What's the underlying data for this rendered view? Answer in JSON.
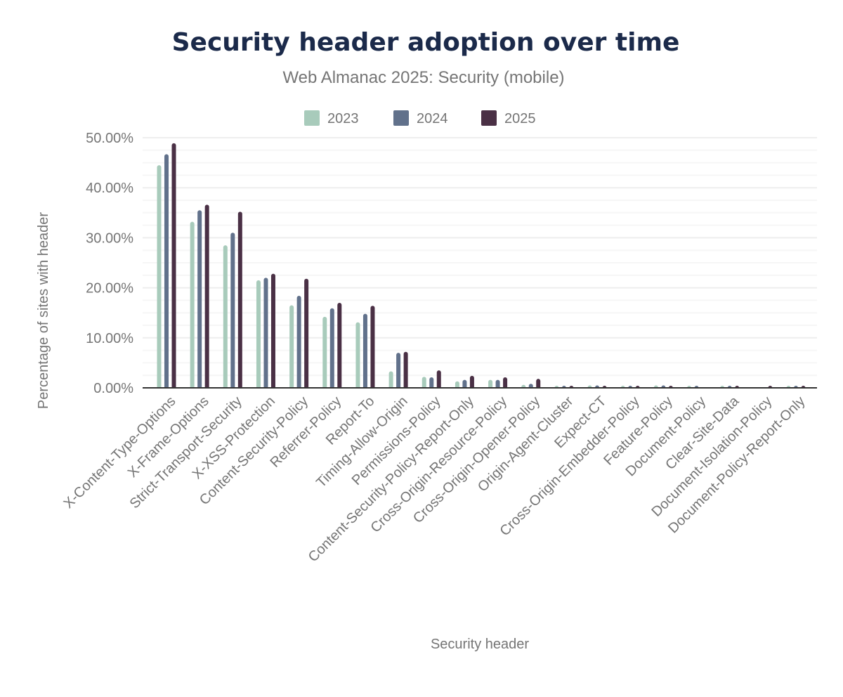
{
  "chart_data": {
    "type": "bar",
    "title": "Security header adoption over time",
    "subtitle": "Web Almanac 2025: Security (mobile)",
    "xlabel": "Security header",
    "ylabel": "Percentage of sites with header",
    "ylim": [
      0,
      50
    ],
    "yticks": [
      "0.00%",
      "10.00%",
      "20.00%",
      "30.00%",
      "40.00%",
      "50.00%"
    ],
    "grid": true,
    "legend_position": "top",
    "categories": [
      "X-Content-Type-Options",
      "X-Frame-Options",
      "Strict-Transport-Security",
      "X-XSS-Protection",
      "Content-Security-Policy",
      "Referrer-Policy",
      "Report-To",
      "Timing-Allow-Origin",
      "Permissions-Policy",
      "Content-Security-Policy-Report-Only",
      "Cross-Origin-Resource-Policy",
      "Cross-Origin-Opener-Policy",
      "Origin-Agent-Cluster",
      "Expect-CT",
      "Cross-Origin-Embedder-Policy",
      "Feature-Policy",
      "Document-Policy",
      "Clear-Site-Data",
      "Document-Isolation-Policy",
      "Document-Policy-Report-Only"
    ],
    "series": [
      {
        "name": "2023",
        "color": "#a8cbbb",
        "values": [
          44.5,
          33.2,
          28.5,
          21.5,
          16.5,
          14.2,
          13.1,
          3.3,
          2.2,
          1.3,
          1.6,
          0.6,
          0.1,
          0.5,
          0.1,
          0.5,
          0.05,
          0.1,
          0,
          0.1
        ]
      },
      {
        "name": "2024",
        "color": "#61718b",
        "values": [
          46.7,
          35.5,
          31.0,
          22.0,
          18.4,
          15.9,
          14.8,
          7.0,
          2.1,
          1.6,
          1.6,
          0.8,
          0.1,
          0.5,
          0.2,
          0.5,
          0.05,
          0.1,
          0,
          0.1
        ]
      },
      {
        "name": "2025",
        "color": "#4a3045",
        "values": [
          48.9,
          36.6,
          35.2,
          22.8,
          21.8,
          17.0,
          16.4,
          7.2,
          3.5,
          2.4,
          2.1,
          1.8,
          0.4,
          0.4,
          0.4,
          0.2,
          0.02,
          0.05,
          0.05,
          0.05
        ]
      }
    ]
  }
}
